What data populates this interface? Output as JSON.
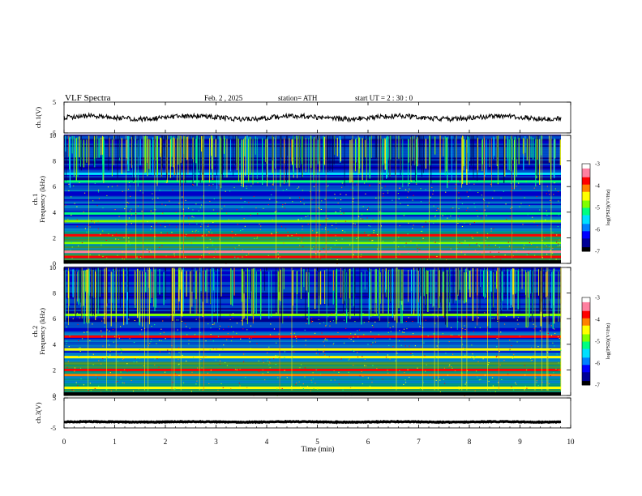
{
  "header": {
    "title": "VLF  Spectra",
    "date": "Feb. 2  , 2025",
    "station": "station= ATH",
    "start": "start  UT  =   2  : 30 : 0"
  },
  "chart_data": [
    {
      "type": "line",
      "panel": "ch1-waveform",
      "ylabel": "ch.1(V)",
      "ylim": [
        -5,
        5
      ],
      "yticks": [
        "5",
        "-5"
      ],
      "xlim": [
        0,
        10
      ],
      "trace_mean": 0.0,
      "trace_range": [
        -1.5,
        1.5
      ]
    },
    {
      "type": "heatmap",
      "panel": "ch1-spectrogram",
      "ylabel": "ch.1\nFrequency  (kHz)",
      "ylim": [
        0,
        10
      ],
      "yticks": [
        "0",
        "2",
        "4",
        "6",
        "8",
        "10"
      ],
      "xlim": [
        0,
        10
      ],
      "colorbar": {
        "label": "log(PSD)(V²/Hz)",
        "range": [
          -7,
          -3
        ],
        "ticks": [
          "-3",
          "-4",
          "-5",
          "-6",
          "-7"
        ]
      },
      "bands_khz": [
        {
          "freq": 0.5,
          "level": -3.6
        },
        {
          "freq": 0.9,
          "level": -3.3
        },
        {
          "freq": 1.6,
          "level": -4.8
        },
        {
          "freq": 2.2,
          "level": -3.9
        },
        {
          "freq": 3.3,
          "level": -5.0
        },
        {
          "freq": 3.9,
          "level": -5.2
        },
        {
          "freq": 6.4,
          "level": -5.1
        },
        {
          "freq": 7.0,
          "level": -5.4
        }
      ],
      "sferic_band_khz": [
        6.0,
        10.0
      ]
    },
    {
      "type": "heatmap",
      "panel": "ch2-spectrogram",
      "ylabel": "ch.2\nFrequency  (kHz)",
      "ylim": [
        0,
        10
      ],
      "yticks": [
        "0",
        "2",
        "4",
        "6",
        "8",
        "10"
      ],
      "xlim": [
        0,
        10
      ],
      "colorbar": {
        "label": "log(PSD)(V²/Hz)",
        "range": [
          -7,
          -3
        ],
        "ticks": [
          "-3",
          "-4",
          "-5",
          "-6",
          "-7"
        ]
      },
      "bands_khz": [
        {
          "freq": 0.6,
          "level": -4.5
        },
        {
          "freq": 1.6,
          "level": -4.2
        },
        {
          "freq": 2.0,
          "level": -3.6
        },
        {
          "freq": 3.0,
          "level": -4.6
        },
        {
          "freq": 3.6,
          "level": -4.4
        },
        {
          "freq": 4.6,
          "level": -3.9
        },
        {
          "freq": 6.3,
          "level": -5.0
        }
      ],
      "sferic_band_khz": [
        5.5,
        10.0
      ]
    },
    {
      "type": "line",
      "panel": "ch3-waveform",
      "ylabel": "ch.3(V)",
      "ylim": [
        -5,
        5
      ],
      "yticks": [
        "5",
        "-5"
      ],
      "xlim": [
        0,
        10
      ],
      "trace_mean": -3.0,
      "trace_range": [
        -3.2,
        -2.8
      ]
    }
  ],
  "x_axis": {
    "label": "Time  (min)",
    "ticks": [
      "0",
      "1",
      "2",
      "3",
      "4",
      "5",
      "6",
      "7",
      "8",
      "9",
      "10"
    ]
  },
  "colors": {
    "cmap": [
      "#000000",
      "#000096",
      "#0000ff",
      "#0080ff",
      "#00e0ff",
      "#00ff80",
      "#80ff00",
      "#ffff00",
      "#ff8000",
      "#ff0000",
      "#ff80a0",
      "#ffffff"
    ]
  }
}
